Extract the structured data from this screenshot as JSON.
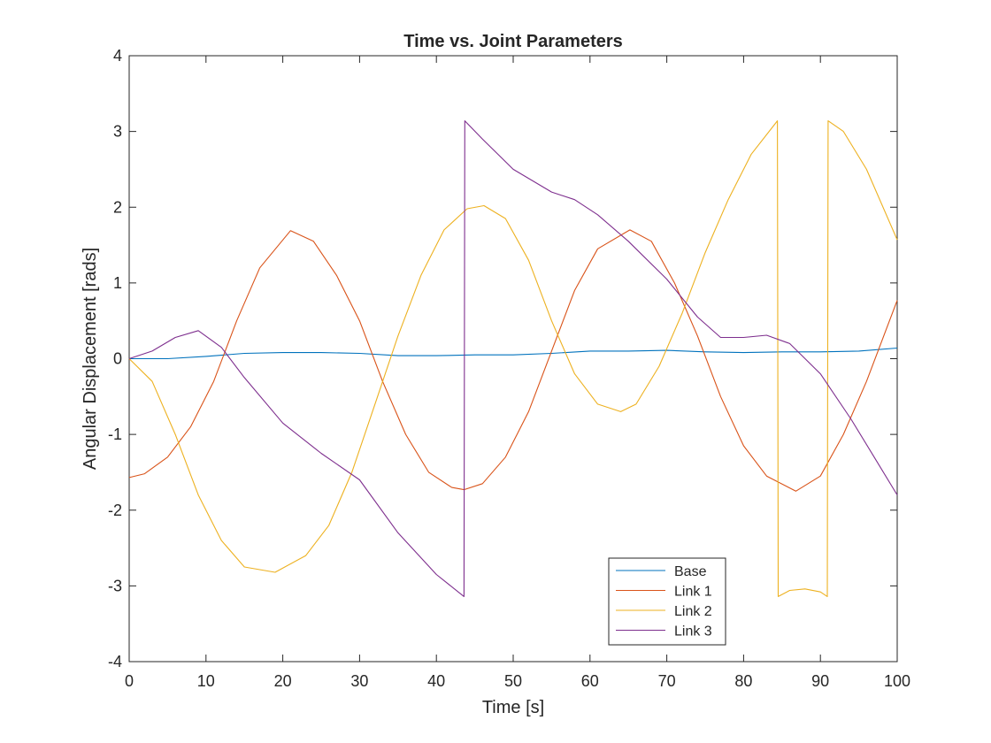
{
  "chart_data": {
    "type": "line",
    "title": "Time vs. Joint Parameters",
    "xlabel": "Time [s]",
    "ylabel": "Angular Displacement [rads]",
    "xlim": [
      0,
      100
    ],
    "ylim": [
      -4,
      4
    ],
    "xticks": [
      0,
      10,
      20,
      30,
      40,
      50,
      60,
      70,
      80,
      90,
      100
    ],
    "yticks": [
      -4,
      -3,
      -2,
      -1,
      0,
      1,
      2,
      3,
      4
    ],
    "grid": false,
    "legend_position": "bottom-right",
    "series": [
      {
        "name": "Base",
        "color": "#0072BD",
        "x": [
          0,
          5,
          10,
          15,
          20,
          25,
          30,
          35,
          40,
          45,
          50,
          55,
          60,
          65,
          70,
          75,
          80,
          85,
          90,
          95,
          100
        ],
        "y": [
          0,
          0,
          0.03,
          0.07,
          0.08,
          0.08,
          0.07,
          0.04,
          0.04,
          0.05,
          0.05,
          0.07,
          0.1,
          0.1,
          0.11,
          0.09,
          0.08,
          0.09,
          0.09,
          0.1,
          0.14
        ]
      },
      {
        "name": "Link 1",
        "color": "#D95319",
        "x": [
          0,
          2,
          5,
          8,
          11,
          14,
          17,
          21,
          24,
          27,
          30,
          33,
          36,
          39,
          42,
          43.6,
          46,
          49,
          52,
          55,
          58,
          61,
          65.2,
          68,
          71,
          74,
          77,
          80,
          83,
          86.8,
          90,
          93,
          96,
          100
        ],
        "y": [
          -1.57,
          -1.52,
          -1.3,
          -0.9,
          -0.3,
          0.5,
          1.2,
          1.69,
          1.55,
          1.1,
          0.5,
          -0.3,
          -1.0,
          -1.5,
          -1.7,
          -1.73,
          -1.65,
          -1.3,
          -0.7,
          0.1,
          0.9,
          1.45,
          1.7,
          1.55,
          1.0,
          0.3,
          -0.5,
          -1.15,
          -1.55,
          -1.75,
          -1.55,
          -1.0,
          -0.3,
          0.77
        ]
      },
      {
        "name": "Link 2",
        "color": "#EDB120",
        "x": [
          0,
          3,
          6,
          9,
          12,
          15,
          19,
          23,
          26,
          29,
          32,
          35,
          38,
          41,
          44,
          46.2,
          49,
          52,
          55,
          58,
          61,
          64,
          66,
          69,
          72,
          75,
          78,
          81,
          84.4,
          84.5,
          86,
          88,
          90,
          90.9,
          91,
          93,
          96,
          100
        ],
        "y": [
          0,
          -0.3,
          -1.0,
          -1.8,
          -2.4,
          -2.75,
          -2.82,
          -2.6,
          -2.2,
          -1.5,
          -0.6,
          0.3,
          1.1,
          1.7,
          1.98,
          2.02,
          1.85,
          1.3,
          0.5,
          -0.2,
          -0.6,
          -0.7,
          -0.6,
          -0.1,
          0.6,
          1.4,
          2.1,
          2.7,
          3.14,
          -3.14,
          -3.06,
          -3.04,
          -3.08,
          -3.14,
          3.14,
          3.0,
          2.5,
          1.57
        ]
      },
      {
        "name": "Link 3",
        "color": "#7E2F8E",
        "x": [
          0,
          3,
          6,
          9,
          12,
          15,
          20,
          25,
          30,
          35,
          40,
          43.6,
          43.7,
          46,
          50,
          55,
          58,
          61,
          65,
          70,
          74,
          77,
          80,
          83,
          86,
          90,
          94,
          97,
          100
        ],
        "y": [
          0,
          0.1,
          0.28,
          0.37,
          0.15,
          -0.25,
          -0.85,
          -1.25,
          -1.6,
          -2.3,
          -2.85,
          -3.14,
          3.14,
          2.9,
          2.5,
          2.2,
          2.1,
          1.9,
          1.55,
          1.05,
          0.55,
          0.28,
          0.28,
          0.31,
          0.2,
          -0.2,
          -0.8,
          -1.3,
          -1.8
        ]
      }
    ]
  }
}
